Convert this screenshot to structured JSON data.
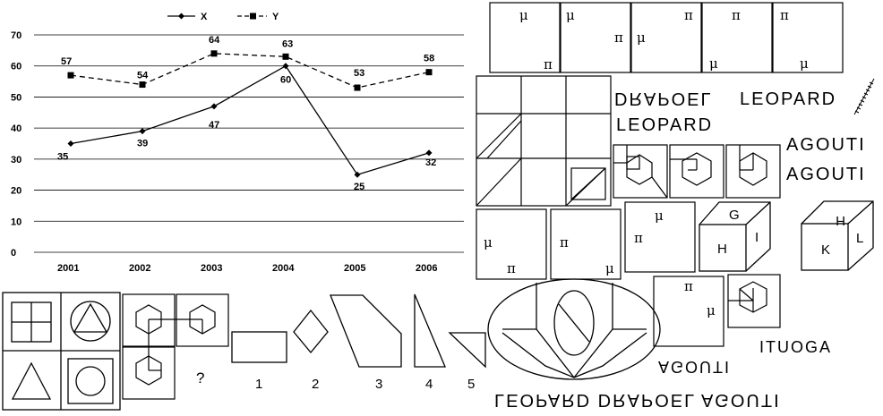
{
  "chart_data": {
    "type": "line",
    "categories": [
      "2001",
      "2002",
      "2003",
      "2004",
      "2005",
      "2006"
    ],
    "series": [
      {
        "name": "X",
        "values": [
          35,
          39,
          47,
          60,
          25,
          32
        ],
        "style": "solid",
        "marker": "diamond"
      },
      {
        "name": "Y",
        "values": [
          57,
          54,
          64,
          63,
          53,
          58
        ],
        "style": "dashed",
        "marker": "square"
      }
    ],
    "y_ticks": [
      "0",
      "10",
      "20",
      "30",
      "40",
      "50",
      "60",
      "70"
    ],
    "ylim": [
      0,
      70
    ],
    "grid": true,
    "legend": "top"
  },
  "symbols": {
    "mu": "μ",
    "pi": "π"
  },
  "words": {
    "leopard": "LEOPARD",
    "leopard_upper_right": "LEOPARD",
    "agouti": "AGOUTI",
    "agouti_mirror_right": "AGOUTI",
    "agouti_upside": "AGOUTI",
    "itouga": "ITUOGA",
    "bottom_line": "LEOPARD DRAPOEL AGOUTI",
    "drapoel": "DRAPOEL"
  },
  "cubes": {
    "cube1": {
      "top": "G",
      "front": "H",
      "side": "I"
    },
    "cube2": {
      "top": "H",
      "front": "K",
      "side": "L"
    }
  },
  "sequence": {
    "question": "?",
    "options": [
      "1",
      "2",
      "3",
      "4",
      "5"
    ]
  }
}
